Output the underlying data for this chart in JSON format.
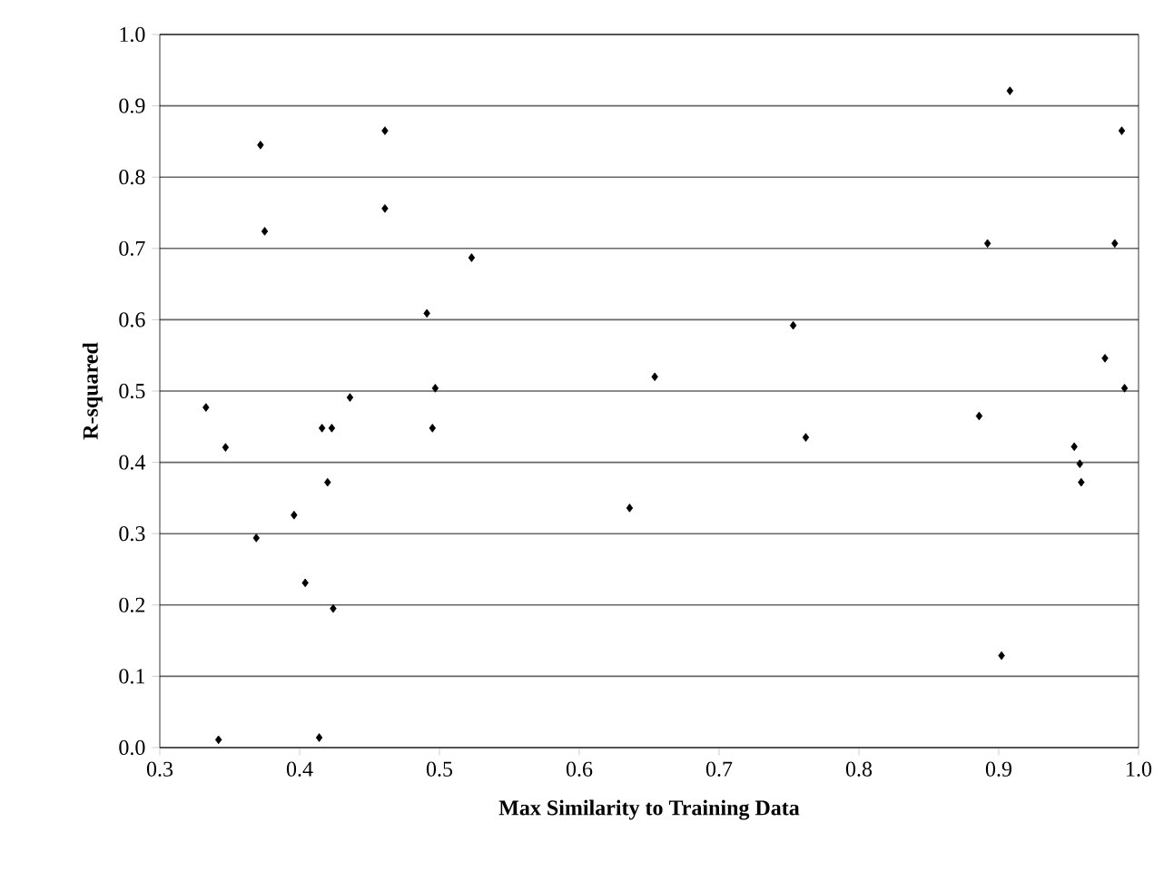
{
  "chart_data": {
    "type": "scatter",
    "xlabel": "Max Similarity to Training Data",
    "ylabel": "R-squared",
    "x": [
      0.333,
      0.347,
      0.342,
      0.369,
      0.372,
      0.375,
      0.396,
      0.404,
      0.414,
      0.416,
      0.423,
      0.42,
      0.424,
      0.436,
      0.461,
      0.461,
      0.491,
      0.497,
      0.495,
      0.523,
      0.636,
      0.654,
      0.753,
      0.762,
      0.886,
      0.892,
      0.908,
      0.902,
      0.954,
      0.958,
      0.959,
      0.976,
      0.983,
      0.988,
      0.99
    ],
    "values": [
      0.477,
      0.421,
      0.011,
      0.294,
      0.845,
      0.724,
      0.326,
      0.231,
      0.014,
      0.448,
      0.448,
      0.372,
      0.195,
      0.491,
      0.865,
      0.756,
      0.609,
      0.504,
      0.448,
      0.687,
      0.336,
      0.52,
      0.592,
      0.435,
      0.465,
      0.707,
      0.921,
      0.129,
      0.422,
      0.398,
      0.372,
      0.546,
      0.707,
      0.865,
      0.504
    ],
    "color": "#000000",
    "marker": "diamond",
    "grid": "y",
    "xlim": [
      0.3,
      1.0
    ],
    "xticks": [
      {
        "value": 0.3,
        "label": "0.3"
      },
      {
        "value": 0.4,
        "label": "0.4"
      },
      {
        "value": 0.5,
        "label": "0.5"
      },
      {
        "value": 0.6,
        "label": "0.6"
      },
      {
        "value": 0.7,
        "label": "0.7"
      },
      {
        "value": 0.8,
        "label": "0.8"
      },
      {
        "value": 0.9,
        "label": "0.9"
      },
      {
        "value": 1.0,
        "label": "1.0"
      }
    ],
    "ylim": [
      0.0,
      1.0
    ],
    "yticks": [
      {
        "value": 0.0,
        "label": "0.0"
      },
      {
        "value": 0.1,
        "label": "0.1"
      },
      {
        "value": 0.2,
        "label": "0.2"
      },
      {
        "value": 0.3,
        "label": "0.3"
      },
      {
        "value": 0.4,
        "label": "0.4"
      },
      {
        "value": 0.5,
        "label": "0.5"
      },
      {
        "value": 0.6,
        "label": "0.6"
      },
      {
        "value": 0.7,
        "label": "0.7"
      },
      {
        "value": 0.8,
        "label": "0.8"
      },
      {
        "value": 0.9,
        "label": "0.9"
      },
      {
        "value": 1.0,
        "label": "1.0"
      }
    ]
  }
}
